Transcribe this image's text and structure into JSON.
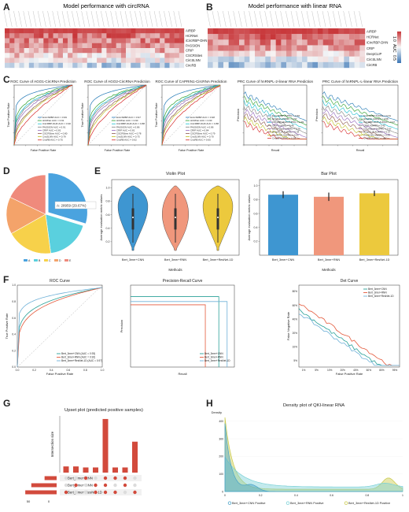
{
  "panels": {
    "A": "A",
    "B": "B",
    "C": "C",
    "D": "D",
    "E": "E",
    "F": "F",
    "G": "G",
    "H": "H"
  },
  "panelA": {
    "title": "Model performance with circRNA",
    "rows": [
      "AIRBP",
      "HCRNet",
      "iCircRBP-DHN",
      "PASSION",
      "CRIP",
      "CSCRSites",
      "CircSLNN",
      "CircRB"
    ],
    "legend_labels": [
      "1.0",
      "AUC",
      "0.5"
    ],
    "colors": {
      "high": "#c8373a",
      "low": "#3a75b5"
    }
  },
  "panelB": {
    "title": "Model performance with linear RNA",
    "rows": [
      "AIRBP",
      "HCRNet",
      "iCircRBP-DHN",
      "CRIP",
      "DeepCLIP",
      "CircSLNN",
      "CircRB"
    ]
  },
  "panelC": {
    "roc_titles": [
      "ROC Curve of AGO1-CircRNA Prediction",
      "ROC Curve of AGO2-CircRNA Prediction",
      "ROC Curve of CAPRIN1-CircRNA Prediction"
    ],
    "prc_titles": [
      "PRC Curve of hnRNPL-2-linear RNA Prediction",
      "PRC Curve of hnRNPL-L-linear RNA Prediction"
    ],
    "roc_xlabel": "False Positive Rate",
    "roc_ylabel": "True Positive Rate",
    "prc_xlabel": "Recall",
    "prc_ylabel": "Precision",
    "roc_legends": [
      [
        "EnrichRBP AUC = 0.99",
        "HCRNet AUC = 0.91",
        "iCircRBP-DHN AUC = 0.90",
        "PASSION AUC = 0.91",
        "CRIP AUC = 0.81",
        "CSCRSites AUC = 0.80",
        "CircSLNN AUC = 0.79",
        "CircRB AUC = 0.75"
      ],
      [
        "EnrichRBP AUC = 0.97",
        "HCRNet AUC = 0.90",
        "iCircRBP-DHN AUC = 0.88",
        "PASSION AUC = 0.86",
        "CRIP AUC = 0.81",
        "CSCRSites AUC = 0.78",
        "CircSLNN AUC = 0.73",
        "CircRB AUC = 0.62"
      ],
      [
        "EnrichRBP AUC = 0.98",
        "HCRNet AUC = 0.90",
        "iCircRBP-DHN AUC = 0.88",
        "PASSION AUC = 0.86",
        "CRIP AUC = 0.84",
        "CSCRSites AUC = 0.79",
        "CircSLNN AUC = 0.70",
        "CircRB AUC = 0.65"
      ]
    ],
    "prc_legends": [
      [
        "EnrichRBP AUPRC = 0.63",
        "HCRNet AUPRC = 0.57",
        "iCircRBP-DHN AUPRC = 0.49",
        "CRIP AUPRC = 0.46",
        "CSCRSites AUPRC = 0.39",
        "DeepCLIP AUPRC = 0.34",
        "CircSLNN AUPRC = 0.31",
        "CircRB AUPRC = 0.29"
      ],
      [
        "EnrichRBP AUPRC = 0.61",
        "HCRNet AUPRC = 0.58",
        "iCircRBP-DHN AUPRC = 0.47",
        "CRIP AUPRC = 0.45",
        "CSCRSites AUPRC = 0.37",
        "DeepCLIP AUPRC = 0.37",
        "CircSLNN AUPRC = 0.28",
        "CircRB AUPRC = nan"
      ]
    ],
    "colors": [
      "#1f77b4",
      "#2ca02c",
      "#17becf",
      "#7f7f7f",
      "#9467bd",
      "#8c564b",
      "#bcbd22",
      "#d62728"
    ]
  },
  "panelD": {
    "tooltip": "A: 28959 (29.67%)",
    "legend": [
      "A",
      "B",
      "C",
      "D",
      "E"
    ],
    "chart_data": {
      "type": "pie",
      "labels": [
        "A",
        "B",
        "C",
        "D",
        "E"
      ],
      "values": [
        28959,
        17800,
        18500,
        14900,
        17440
      ],
      "colors": [
        "#4aa3df",
        "#5ad0de",
        "#f7d14a",
        "#f4a36a",
        "#ef8a7c"
      ]
    }
  },
  "panelE": {
    "violin_title": "Violin Plot",
    "bar_title": "Bar Plot",
    "ylabel": "Average evaluation metric values",
    "xlabel": "Methods",
    "yticks": [
      "0.2",
      "0.4",
      "0.6",
      "0.8",
      "1.0"
    ],
    "categories": [
      "Bert_3mer+CNN",
      "Bert_3mer+RNN",
      "Bert_3mer+ResNet-1D"
    ],
    "colors": [
      "#3e96d1",
      "#f0977c",
      "#ecc93d"
    ],
    "chart_data": {
      "type": "bar",
      "categories": [
        "Bert_3mer+CNN",
        "Bert_3mer+RNN",
        "Bert_3mer+ResNet-1D"
      ],
      "values": [
        0.87,
        0.84,
        0.89
      ],
      "errors": [
        0.05,
        0.06,
        0.04
      ],
      "ylim": [
        0,
        1.0
      ]
    }
  },
  "panelF": {
    "roc_title": "ROC Curve",
    "pr_title": "Precision-Recall Curve",
    "det_title": "Det Curve",
    "roc_xlabel": "False Positive Rate",
    "roc_ylabel": "True Positive Rate",
    "pr_xlabel": "Recall",
    "pr_ylabel": "Precision",
    "det_xlabel": "False Positive Rate",
    "det_ylabel": "False Negative Rate",
    "roc_legend": [
      "Bert_3mer+CNN (AUC = 0.93)",
      "Bert_3mer+RNN (AUC = 0.92)",
      "Bert_3mer+ResNet-1D (AUC = 0.97)"
    ],
    "pr_legend": [
      "Bert_3mer+CNN",
      "Bert_3mer+RNN",
      "Bert_3mer+ResNet-1D"
    ],
    "det_legend": [
      "Bert_3mer+CNN",
      "Bert_3mer+RNN",
      "Bert_3mer+ResNet-1D"
    ],
    "roc_ticks": [
      "0.0",
      "0.2",
      "0.4",
      "0.6",
      "0.8",
      "1.0"
    ],
    "det_xticks": [
      "1%",
      "5%",
      "10%",
      "20%",
      "40%",
      "60%",
      "80%",
      "95%"
    ],
    "det_yticks": [
      "5%",
      "10%",
      "20%",
      "40%",
      "60%",
      "80%"
    ],
    "colors": [
      "#2aa198",
      "#e45a3c",
      "#6fb1d8"
    ]
  },
  "panelG": {
    "title": "Upset plot (predicted positive samples)",
    "ylabel": "Intersection size",
    "sets": [
      "Bert_3mer+RNN",
      "Bert_3mer+CNN",
      "Bert_3mer+ResNet-1D"
    ],
    "set_axis_ticks": [
      "50",
      "0"
    ],
    "chart_data": {
      "type": "bar",
      "intersection_sizes": [
        6,
        6,
        5,
        5,
        52,
        5,
        5,
        30
      ],
      "set_sizes": [
        20,
        42,
        52
      ],
      "ylim": [
        0,
        55
      ]
    }
  },
  "panelH": {
    "title": "Density plot of QKI-linear RNA",
    "ylabel": "Density",
    "yticks": [
      "0",
      "100",
      "200",
      "300",
      "400"
    ],
    "xticks": [
      "0",
      "0.2",
      "0.4",
      "0.6",
      "0.8",
      "1"
    ],
    "legend": [
      "Bert_3mer+CNN Positive",
      "Bert_3mer+RNN Positive",
      "Bert_3mer+ResNet-1D Positive"
    ],
    "colors": [
      "#4aa3c8",
      "#7ad0d6",
      "#c9c94a"
    ]
  }
}
